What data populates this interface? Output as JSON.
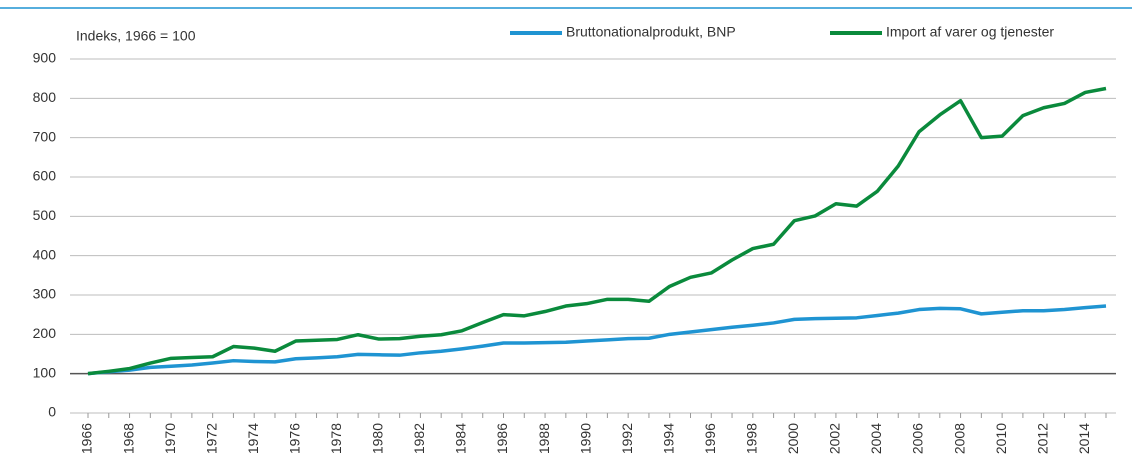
{
  "chart_data": {
    "type": "line",
    "annotation": "Indeks, 1966 = 100",
    "categories": [
      "1966",
      null,
      "1968",
      null,
      "1970",
      null,
      "1972",
      null,
      "1974",
      null,
      "1976",
      null,
      "1978",
      null,
      "1980",
      null,
      "1982",
      null,
      "1984",
      null,
      "1986",
      null,
      "1988",
      null,
      "1990",
      null,
      "1992",
      null,
      "1994",
      null,
      "1996",
      null,
      "1998",
      null,
      "2000",
      null,
      "2002",
      null,
      "2004",
      null,
      "2006",
      null,
      "2008",
      null,
      "2010",
      null,
      "2012",
      null,
      "2014",
      null
    ],
    "series": [
      {
        "name": "Bruttonationalprodukt, BNP",
        "color": "#1f94d2",
        "values": [
          100,
          105,
          109,
          116,
          119,
          122,
          127,
          133,
          131,
          130,
          138,
          140,
          143,
          149,
          148,
          147,
          153,
          157,
          163,
          170,
          178,
          178,
          179,
          180,
          183,
          186,
          189,
          190,
          200,
          206,
          212,
          218,
          223,
          229,
          238,
          240,
          241,
          242,
          248,
          254,
          263,
          266,
          265,
          252,
          256,
          260,
          260,
          263,
          268,
          272
        ]
      },
      {
        "name": "Import af varer og tjenester",
        "color": "#0a8a3c",
        "values": [
          100,
          106,
          113,
          127,
          139,
          141,
          143,
          169,
          165,
          157,
          183,
          185,
          187,
          199,
          188,
          189,
          195,
          199,
          209,
          230,
          250,
          247,
          258,
          272,
          278,
          289,
          289,
          284,
          322,
          345,
          356,
          389,
          418,
          429,
          489,
          501,
          532,
          526,
          564,
          628,
          715,
          758,
          794,
          700,
          704,
          756,
          776,
          787,
          815,
          825
        ]
      }
    ],
    "ylim": [
      0,
      900
    ],
    "yticks": [
      0,
      100,
      200,
      300,
      400,
      500,
      600,
      700,
      800,
      900
    ],
    "baseline": 100,
    "grid": true,
    "legend": "top-right"
  }
}
